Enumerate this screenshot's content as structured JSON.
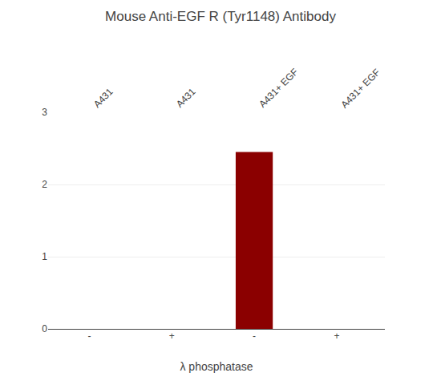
{
  "chart_data": {
    "type": "bar",
    "title": "Mouse Anti-EGF R (Tyr1148) Antibody",
    "categories": [
      "-",
      "+",
      "-",
      "+"
    ],
    "values": [
      0,
      0,
      2.45,
      0
    ],
    "color": "#8B0000",
    "annotations": [
      "A431",
      "A431",
      "A431+ EGF",
      "A431+ EGF"
    ],
    "xlabel": "λ phosphatase",
    "ylim": [
      0,
      3.0
    ],
    "yticks": [
      0,
      1,
      2,
      3
    ],
    "grid": true
  }
}
